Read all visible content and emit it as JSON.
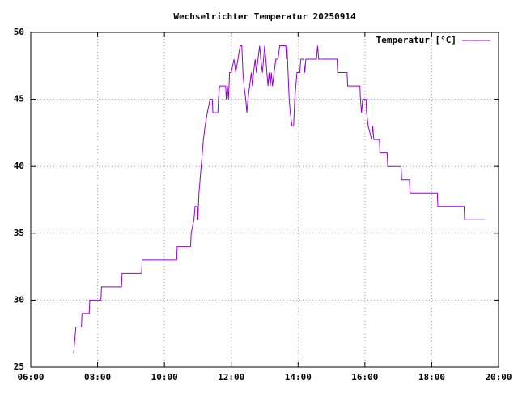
{
  "chart_data": {
    "type": "line",
    "title": "Wechselrichter Temperatur 20250914",
    "xlim": [
      "06:00",
      "20:00"
    ],
    "xticks": [
      "06:00",
      "08:00",
      "10:00",
      "12:00",
      "14:00",
      "16:00",
      "18:00",
      "20:00"
    ],
    "ylim": [
      25,
      50
    ],
    "yticks": [
      25,
      30,
      35,
      40,
      45,
      50
    ],
    "grid": true,
    "legend": "top-right",
    "x": [
      "07:17",
      "07:19",
      "07:21",
      "07:31",
      "07:32",
      "07:45",
      "07:46",
      "08:06",
      "08:07",
      "08:43",
      "08:44",
      "09:19",
      "09:20",
      "10:22",
      "10:23",
      "10:47",
      "10:48",
      "10:53",
      "10:55",
      "10:59",
      "11:00",
      "11:02",
      "11:04",
      "11:06",
      "11:08",
      "11:10",
      "11:13",
      "11:17",
      "11:22",
      "11:26",
      "11:27",
      "11:36",
      "11:37",
      "11:39",
      "11:50",
      "11:51",
      "11:53",
      "11:55",
      "11:57",
      "12:00",
      "12:05",
      "12:08",
      "12:12",
      "12:16",
      "12:19",
      "12:21",
      "12:23",
      "12:26",
      "12:28",
      "12:30",
      "12:33",
      "12:36",
      "12:38",
      "12:40",
      "12:43",
      "12:45",
      "12:48",
      "12:51",
      "12:53",
      "12:56",
      "12:58",
      "13:00",
      "13:02",
      "13:04",
      "13:06",
      "13:08",
      "13:10",
      "13:12",
      "13:14",
      "13:17",
      "13:20",
      "13:24",
      "13:27",
      "13:38",
      "13:39",
      "13:40",
      "13:42",
      "13:44",
      "13:46",
      "13:49",
      "13:52",
      "13:54",
      "13:56",
      "13:58",
      "14:03",
      "14:05",
      "14:10",
      "14:12",
      "14:14",
      "14:33",
      "14:35",
      "14:37",
      "15:10",
      "15:11",
      "15:28",
      "15:29",
      "15:51",
      "15:52",
      "15:54",
      "15:56",
      "16:02",
      "16:03",
      "16:06",
      "16:12",
      "16:14",
      "16:16",
      "16:26",
      "16:27",
      "16:40",
      "16:41",
      "17:05",
      "17:06",
      "17:20",
      "17:21",
      "18:10",
      "18:11",
      "18:58",
      "18:59",
      "19:36"
    ],
    "series": [
      {
        "name": "Temperatur [°C]",
        "color": "#9400d3",
        "values": [
          26,
          27,
          28,
          28,
          29,
          29,
          30,
          30,
          31,
          31,
          32,
          32,
          33,
          33,
          34,
          34,
          35,
          36,
          37,
          37,
          36,
          38,
          39,
          40,
          41,
          42,
          43,
          44,
          45,
          45,
          44,
          44,
          45,
          46,
          46,
          45,
          46,
          45,
          47,
          47,
          48,
          47,
          48,
          49,
          49,
          47,
          46,
          45,
          44,
          45,
          46,
          47,
          46,
          47,
          48,
          47,
          48,
          49,
          48,
          47,
          48,
          49,
          48,
          47,
          46,
          47,
          46,
          47,
          46,
          47,
          48,
          48,
          49,
          49,
          48,
          49,
          47,
          45,
          44,
          43,
          43,
          45,
          46,
          47,
          47,
          48,
          48,
          47,
          48,
          48,
          49,
          48,
          48,
          47,
          47,
          46,
          46,
          45,
          44,
          45,
          45,
          44,
          43,
          42,
          43,
          42,
          42,
          41,
          41,
          40,
          40,
          39,
          39,
          38,
          38,
          37,
          37,
          36,
          36
        ]
      }
    ]
  }
}
